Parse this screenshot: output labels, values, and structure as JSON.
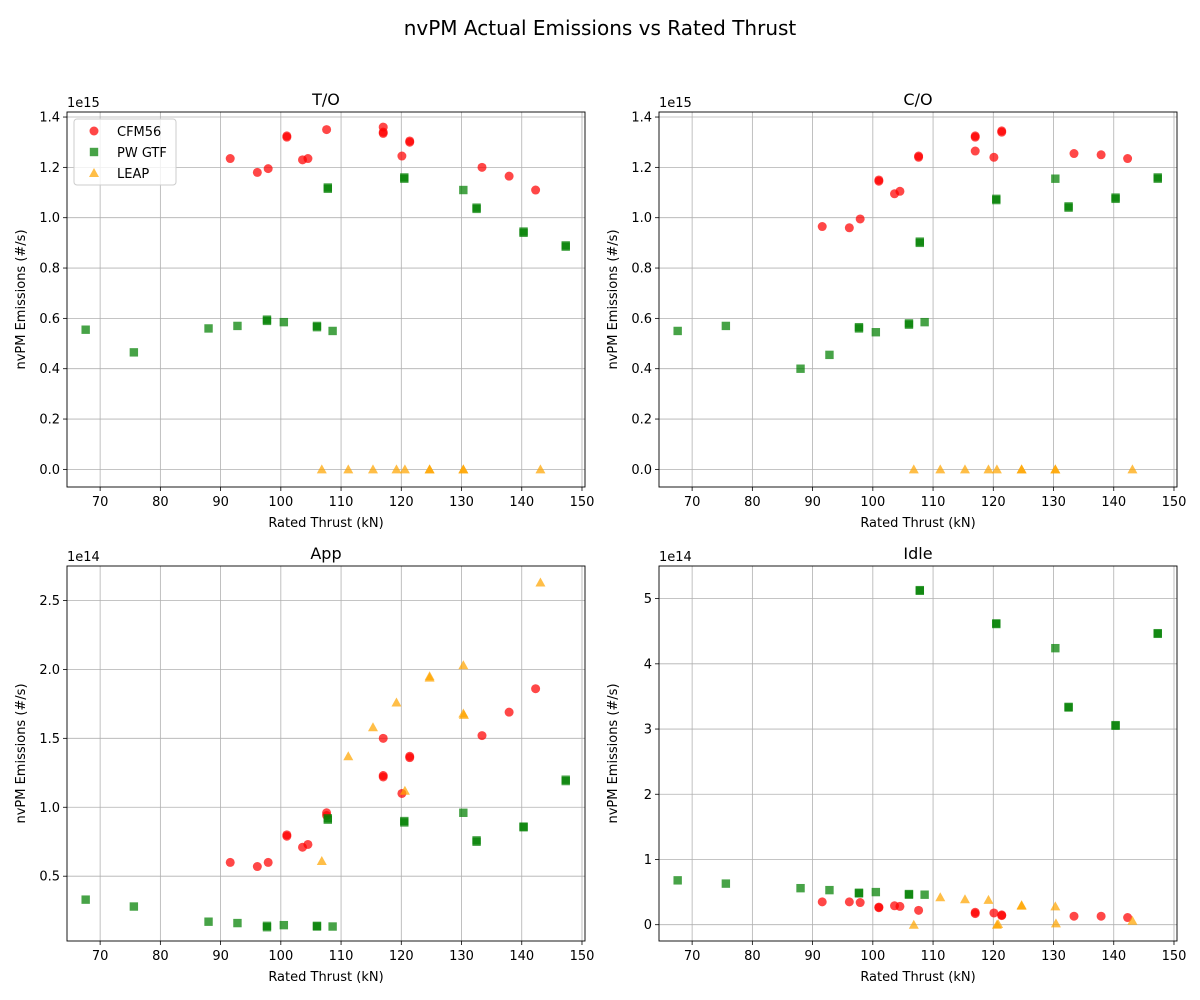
{
  "suptitle": "nvPM Actual Emissions vs Rated Thrust",
  "colors": {
    "CFM56": "#ff0000",
    "PW GTF": "#008000",
    "LEAP": "#ffa500"
  },
  "chart_data": [
    {
      "type": "scatter",
      "title": "T/O",
      "xlabel": "Rated Thrust (kN)",
      "ylabel": "nvPM Emissions (#/s)",
      "exponent_label": "1e15",
      "scale": 1000000000000000.0,
      "xlim": [
        64.5,
        150.5
      ],
      "ylim": [
        -0.07,
        1.42
      ],
      "xticks": [
        70,
        80,
        90,
        100,
        110,
        120,
        130,
        140,
        150
      ],
      "yticks": [
        0.0,
        0.2,
        0.4,
        0.6,
        0.8,
        1.0,
        1.2,
        1.4
      ],
      "ytick_labels": [
        "0.0",
        "0.2",
        "0.4",
        "0.6",
        "0.8",
        "1.0",
        "1.2",
        "1.4"
      ],
      "grid": true,
      "legend": {
        "position": "upper-left",
        "entries": [
          "CFM56",
          "PW GTF",
          "LEAP"
        ]
      },
      "series": [
        {
          "name": "CFM56",
          "marker": "circle",
          "x": [
            91.6,
            96.1,
            97.9,
            101.0,
            101.0,
            103.6,
            104.5,
            107.6,
            117.0,
            117.0,
            117.0,
            120.1,
            121.4,
            121.4,
            133.4,
            137.9,
            142.3
          ],
          "y": [
            1.235,
            1.18,
            1.195,
            1.325,
            1.32,
            1.23,
            1.235,
            1.35,
            1.36,
            1.34,
            1.335,
            1.245,
            1.305,
            1.3,
            1.2,
            1.165,
            1.11
          ]
        },
        {
          "name": "PW GTF",
          "marker": "square",
          "x": [
            67.6,
            75.6,
            88.0,
            92.8,
            97.7,
            97.7,
            100.5,
            106.0,
            106.0,
            107.8,
            107.8,
            108.6,
            120.5,
            120.5,
            130.3,
            132.5,
            132.5,
            140.3,
            140.3,
            147.3,
            147.3
          ],
          "y": [
            0.555,
            0.465,
            0.56,
            0.57,
            0.595,
            0.59,
            0.585,
            0.57,
            0.565,
            1.12,
            1.115,
            0.55,
            1.16,
            1.155,
            1.11,
            1.04,
            1.035,
            0.945,
            0.94,
            0.89,
            0.885
          ],
          "y_note": ""
        },
        {
          "name": "LEAP",
          "marker": "triangle",
          "x": [
            106.8,
            111.2,
            115.3,
            119.2,
            120.6,
            124.7,
            124.7,
            130.3,
            130.3,
            143.1
          ],
          "y": [
            0,
            0,
            0,
            0,
            0,
            0,
            0,
            0,
            0,
            0
          ]
        }
      ]
    },
    {
      "type": "scatter",
      "title": "C/O",
      "xlabel": "Rated Thrust (kN)",
      "ylabel": "nvPM Emissions (#/s)",
      "exponent_label": "1e15",
      "scale": 1000000000000000.0,
      "xlim": [
        64.5,
        150.5
      ],
      "ylim": [
        -0.07,
        1.42
      ],
      "xticks": [
        70,
        80,
        90,
        100,
        110,
        120,
        130,
        140,
        150
      ],
      "yticks": [
        0.0,
        0.2,
        0.4,
        0.6,
        0.8,
        1.0,
        1.2,
        1.4
      ],
      "ytick_labels": [
        "0.0",
        "0.2",
        "0.4",
        "0.6",
        "0.8",
        "1.0",
        "1.2",
        "1.4"
      ],
      "grid": true,
      "series": [
        {
          "name": "CFM56",
          "marker": "circle",
          "x": [
            91.6,
            96.1,
            97.9,
            101.0,
            101.0,
            103.6,
            104.5,
            107.6,
            107.6,
            117.0,
            117.0,
            117.0,
            120.1,
            121.4,
            121.4,
            133.4,
            137.9,
            142.3
          ],
          "y": [
            0.965,
            0.96,
            0.995,
            1.15,
            1.145,
            1.095,
            1.105,
            1.245,
            1.24,
            1.325,
            1.32,
            1.265,
            1.24,
            1.345,
            1.34,
            1.255,
            1.25,
            1.235
          ]
        },
        {
          "name": "PW GTF",
          "marker": "square",
          "x": [
            67.6,
            75.6,
            88.0,
            92.8,
            97.7,
            97.7,
            100.5,
            106.0,
            106.0,
            107.8,
            107.8,
            108.6,
            120.5,
            120.5,
            130.3,
            132.5,
            132.5,
            140.3,
            140.3,
            147.3,
            147.3
          ],
          "y": [
            0.55,
            0.57,
            0.4,
            0.455,
            0.56,
            0.565,
            0.545,
            0.575,
            0.58,
            0.905,
            0.9,
            0.585,
            1.075,
            1.07,
            1.155,
            1.045,
            1.04,
            1.08,
            1.075,
            1.155,
            1.16
          ]
        },
        {
          "name": "LEAP",
          "marker": "triangle",
          "x": [
            106.8,
            111.2,
            115.3,
            119.2,
            120.6,
            124.7,
            124.7,
            130.3,
            130.3,
            143.1
          ],
          "y": [
            0,
            0,
            0,
            0,
            0,
            0,
            0,
            0,
            0,
            0
          ]
        }
      ]
    },
    {
      "type": "scatter",
      "title": "App",
      "xlabel": "Rated Thrust (kN)",
      "ylabel": "nvPM Emissions (#/s)",
      "exponent_label": "1e14",
      "scale": 100000000000000.0,
      "xlim": [
        64.5,
        150.5
      ],
      "ylim": [
        0.03,
        2.75
      ],
      "xticks": [
        70,
        80,
        90,
        100,
        110,
        120,
        130,
        140,
        150
      ],
      "yticks": [
        0.5,
        1.0,
        1.5,
        2.0,
        2.5
      ],
      "ytick_labels": [
        "0.5",
        "1.0",
        "1.5",
        "2.0",
        "2.5"
      ],
      "grid": true,
      "series": [
        {
          "name": "CFM56",
          "marker": "circle",
          "x": [
            91.6,
            96.1,
            97.9,
            101.0,
            101.0,
            103.6,
            104.5,
            107.6,
            107.6,
            117.0,
            117.0,
            117.0,
            120.1,
            121.4,
            121.4,
            133.4,
            137.9,
            142.3
          ],
          "y": [
            0.6,
            0.57,
            0.6,
            0.8,
            0.79,
            0.71,
            0.73,
            0.96,
            0.94,
            1.5,
            1.23,
            1.22,
            1.1,
            1.37,
            1.36,
            1.52,
            1.69,
            1.86
          ]
        },
        {
          "name": "PW GTF",
          "marker": "square",
          "x": [
            67.6,
            75.6,
            88.0,
            92.8,
            97.7,
            97.7,
            100.5,
            106.0,
            106.0,
            107.8,
            107.8,
            108.6,
            120.5,
            120.5,
            130.3,
            132.5,
            132.5,
            140.3,
            140.3,
            147.3,
            147.3
          ],
          "y": [
            0.33,
            0.28,
            0.17,
            0.16,
            0.13,
            0.14,
            0.145,
            0.135,
            0.14,
            0.92,
            0.91,
            0.135,
            0.9,
            0.89,
            0.96,
            0.76,
            0.75,
            0.86,
            0.855,
            1.2,
            1.19
          ]
        },
        {
          "name": "LEAP",
          "marker": "triangle",
          "x": [
            106.8,
            111.2,
            115.3,
            119.2,
            120.6,
            124.7,
            124.7,
            130.3,
            130.3,
            130.4,
            143.1
          ],
          "y": [
            0.61,
            1.37,
            1.58,
            1.76,
            1.12,
            1.95,
            1.94,
            2.03,
            1.68,
            1.67,
            2.63
          ]
        }
      ]
    },
    {
      "type": "scatter",
      "title": "Idle",
      "xlabel": "Rated Thrust (kN)",
      "ylabel": "nvPM Emissions (#/s)",
      "exponent_label": "1e14",
      "scale": 100000000000000.0,
      "xlim": [
        64.5,
        150.5
      ],
      "ylim": [
        -0.25,
        5.5
      ],
      "xticks": [
        70,
        80,
        90,
        100,
        110,
        120,
        130,
        140,
        150
      ],
      "yticks": [
        0,
        1,
        2,
        3,
        4,
        5
      ],
      "ytick_labels": [
        "0",
        "1",
        "2",
        "3",
        "4",
        "5"
      ],
      "grid": true,
      "series": [
        {
          "name": "CFM56",
          "marker": "circle",
          "x": [
            91.6,
            96.1,
            97.9,
            101.0,
            101.0,
            103.6,
            104.5,
            107.6,
            117.0,
            117.0,
            120.1,
            121.4,
            121.4,
            133.4,
            137.9,
            142.3
          ],
          "y": [
            0.35,
            0.35,
            0.34,
            0.27,
            0.26,
            0.29,
            0.28,
            0.22,
            0.19,
            0.17,
            0.18,
            0.15,
            0.14,
            0.13,
            0.13,
            0.11
          ]
        },
        {
          "name": "PW GTF",
          "marker": "square",
          "x": [
            67.6,
            75.6,
            88.0,
            92.8,
            97.7,
            97.7,
            100.5,
            106.0,
            106.0,
            107.8,
            107.8,
            108.6,
            120.5,
            120.5,
            130.3,
            132.5,
            132.5,
            140.3,
            140.3,
            147.3,
            147.3
          ],
          "y": [
            0.68,
            0.63,
            0.56,
            0.53,
            0.49,
            0.48,
            0.5,
            0.47,
            0.46,
            5.13,
            5.12,
            0.46,
            4.62,
            4.61,
            4.24,
            3.34,
            3.33,
            3.06,
            3.05,
            4.47,
            4.46
          ]
        },
        {
          "name": "LEAP",
          "marker": "triangle",
          "x": [
            106.8,
            111.2,
            115.3,
            119.2,
            120.6,
            120.8,
            124.7,
            124.7,
            130.3,
            130.4,
            143.1
          ],
          "y": [
            0.0,
            0.42,
            0.39,
            0.38,
            0.0,
            0.01,
            0.3,
            0.29,
            0.28,
            0.02,
            0.06
          ]
        }
      ]
    }
  ]
}
